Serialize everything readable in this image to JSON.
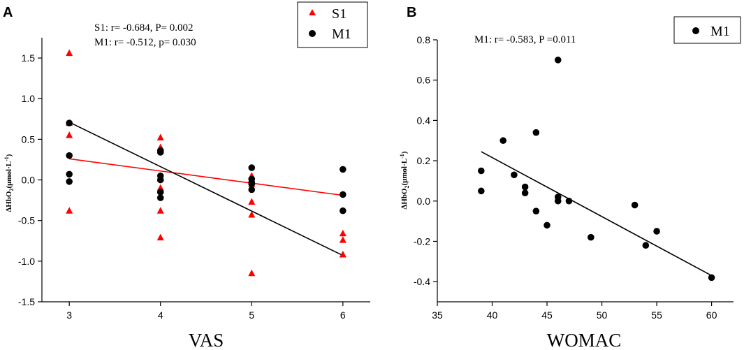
{
  "colors": {
    "s1": "#ff0000",
    "m1": "#000000",
    "axis": "#000000"
  },
  "chart_data": [
    {
      "panel": "A",
      "type": "scatter",
      "xlabel": "VAS",
      "ylabel_main": "∆HbO",
      "ylabel_sub": "2",
      "ylabel_unit": "(μmol·L",
      "ylabel_sup": "-1",
      "ylabel_close": ")",
      "xlim": [
        2.7,
        6.3
      ],
      "ylim": [
        -1.5,
        1.75
      ],
      "xticks": [
        3,
        4,
        5,
        6
      ],
      "xtick_labels": [
        "3",
        "4",
        "5",
        "6"
      ],
      "yticks": [
        -1.5,
        -1.0,
        -0.5,
        0.0,
        0.5,
        1.0,
        1.5
      ],
      "ytick_labels": [
        "-1.5",
        "-1.0",
        "-0.5",
        "0.0",
        "0.5",
        "1.0",
        "1.5"
      ],
      "annotations": [
        "S1: r= -0.684, P= 0.002",
        "M1: r= -0.512, p= 0.030"
      ],
      "legend": [
        "S1",
        "M1"
      ],
      "legend_position": "top-right",
      "series": [
        {
          "name": "S1",
          "marker": "triangle",
          "color": "#ff0000",
          "x": [
            3,
            3,
            3,
            3,
            4,
            4,
            4,
            4,
            4,
            4,
            5,
            5,
            5,
            5,
            5,
            6,
            6,
            6,
            6
          ],
          "y": [
            1.56,
            0.55,
            0.7,
            -0.38,
            0.52,
            0.4,
            0.02,
            -0.1,
            -0.38,
            -0.71,
            0.05,
            -0.05,
            -0.27,
            -0.43,
            -1.15,
            -0.66,
            -0.74,
            -0.92,
            -0.92
          ],
          "fit": {
            "x": [
              3,
              6
            ],
            "y": [
              0.26,
              -0.19
            ]
          }
        },
        {
          "name": "M1",
          "marker": "circle",
          "color": "#000000",
          "x": [
            3,
            3,
            3,
            3,
            4,
            4,
            4,
            4,
            4,
            4,
            5,
            5,
            5,
            5,
            5,
            6,
            6,
            6
          ],
          "y": [
            0.7,
            0.3,
            0.07,
            -0.02,
            0.36,
            0.34,
            0.05,
            0.0,
            -0.15,
            -0.22,
            0.15,
            0.01,
            -0.03,
            -0.05,
            -0.12,
            0.13,
            -0.18,
            -0.38
          ],
          "fit": {
            "x": [
              3,
              6
            ],
            "y": [
              0.71,
              -0.93
            ]
          }
        }
      ]
    },
    {
      "panel": "B",
      "type": "scatter",
      "xlabel": "WOMAC",
      "ylabel_main": "∆HbO",
      "ylabel_sub": "2",
      "ylabel_unit": "(μmol·L",
      "ylabel_sup": "-1",
      "ylabel_close": ")",
      "xlim": [
        35,
        62
      ],
      "ylim": [
        -0.5,
        0.8
      ],
      "xticks": [
        35,
        40,
        45,
        50,
        55,
        60
      ],
      "xtick_labels": [
        "35",
        "40",
        "45",
        "50",
        "55",
        "60"
      ],
      "yticks": [
        -0.4,
        -0.2,
        0.0,
        0.2,
        0.4,
        0.6,
        0.8
      ],
      "ytick_labels": [
        "-0.4",
        "-0.2",
        "0.0",
        "0.2",
        "0.4",
        "0.6",
        "0.8"
      ],
      "annotations": [
        "M1: r= -0.583, P =0.011"
      ],
      "legend": [
        "M1"
      ],
      "legend_position": "top-right",
      "series": [
        {
          "name": "M1",
          "marker": "circle",
          "color": "#000000",
          "x": [
            39,
            39,
            41,
            42,
            43,
            43,
            44,
            44,
            45,
            46,
            46,
            46,
            47,
            49,
            53,
            54,
            55,
            60
          ],
          "y": [
            0.15,
            0.05,
            0.3,
            0.13,
            0.07,
            0.04,
            0.34,
            -0.05,
            -0.12,
            0.7,
            0.02,
            0.0,
            0.0,
            -0.18,
            -0.02,
            -0.22,
            -0.15,
            -0.38
          ],
          "fit": {
            "x": [
              39,
              60
            ],
            "y": [
              0.245,
              -0.37
            ]
          }
        }
      ]
    }
  ]
}
